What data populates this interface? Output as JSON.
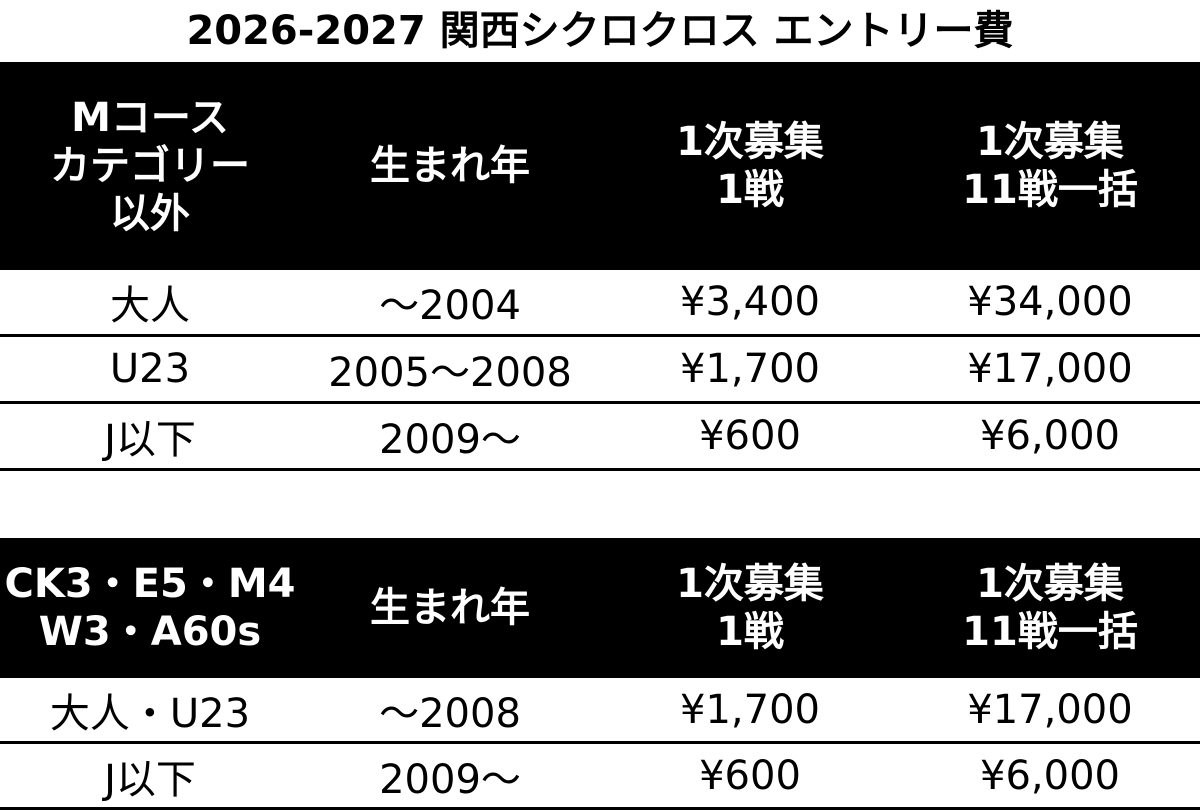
{
  "title": "2026-2027 関西シクロクロス エントリー費",
  "tables": [
    {
      "header": [
        [
          "Mコース",
          "カテゴリー",
          "以外"
        ],
        [
          "生まれ年"
        ],
        [
          "1次募集",
          "1戦"
        ],
        [
          "1次募集",
          "11戦一括"
        ]
      ],
      "rows": [
        [
          "大人",
          "～2004",
          "¥3,400",
          "¥34,000"
        ],
        [
          "U23",
          "2005～2008",
          "¥1,700",
          "¥17,000"
        ],
        [
          "J以下",
          "2009～",
          "¥600",
          "¥6,000"
        ]
      ]
    },
    {
      "header": [
        [
          "CK3・E5・M4",
          "W3・A60s"
        ],
        [
          "生まれ年"
        ],
        [
          "1次募集",
          "1戦"
        ],
        [
          "1次募集",
          "11戦一括"
        ]
      ],
      "rows": [
        [
          "大人・U23",
          "～2008",
          "¥1,700",
          "¥17,000"
        ],
        [
          "J以下",
          "2009～",
          "¥600",
          "¥6,000"
        ]
      ]
    }
  ]
}
